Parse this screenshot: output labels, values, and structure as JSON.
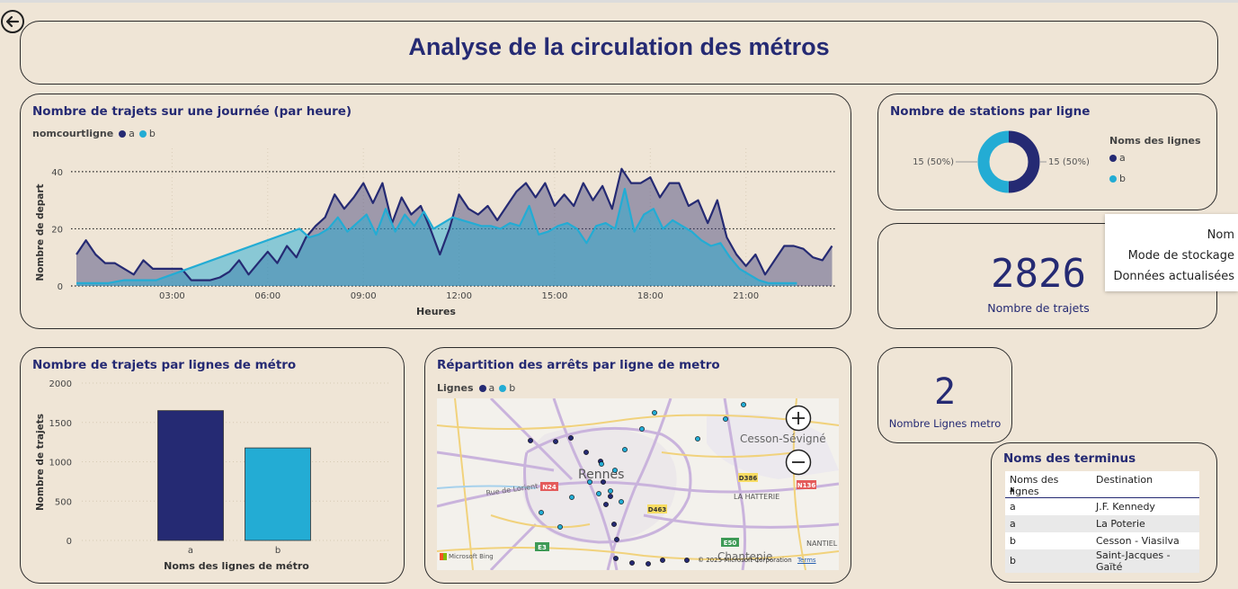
{
  "page": {
    "title": "Analyse de la circulation des métros"
  },
  "colors": {
    "line_a": "#252a73",
    "line_b": "#23acd4",
    "bg": "#efe5d6"
  },
  "back_icon": "back-arrow-icon",
  "trips_by_hour": {
    "title": "Nombre de trajets sur une journée (par heure)",
    "legend_title": "nomcourtligne",
    "legend_a": "a",
    "legend_b": "b",
    "xlabel": "Heures",
    "ylabel": "Nombre de depart",
    "y_ticks": [
      "0",
      "20",
      "40"
    ],
    "x_ticks": [
      "03:00",
      "06:00",
      "09:00",
      "12:00",
      "15:00",
      "18:00",
      "21:00"
    ]
  },
  "chart_data": [
    {
      "type": "area",
      "title": "Nombre de trajets sur une journée (par heure)",
      "xlabel": "Heures",
      "ylabel": "Nombre de depart",
      "ylim": [
        0,
        45
      ],
      "x_unit": "hours",
      "xlim": [
        0,
        23.8
      ],
      "x_ticks": [
        "03:00",
        "06:00",
        "09:00",
        "12:00",
        "15:00",
        "18:00",
        "21:00"
      ],
      "series": [
        {
          "name": "a",
          "x": [
            0,
            0.3,
            0.6,
            0.9,
            1.2,
            1.5,
            1.8,
            2.1,
            2.4,
            2.7,
            3.0,
            3.3,
            3.6,
            3.9,
            4.2,
            4.5,
            4.8,
            5.1,
            5.4,
            5.7,
            6.0,
            6.3,
            6.6,
            6.9,
            7.2,
            7.5,
            7.8,
            8.1,
            8.4,
            8.7,
            9.0,
            9.3,
            9.6,
            9.9,
            10.2,
            10.5,
            10.8,
            11.1,
            11.4,
            11.7,
            12.0,
            12.3,
            12.6,
            12.9,
            13.2,
            13.5,
            13.8,
            14.1,
            14.4,
            14.7,
            15.0,
            15.3,
            15.6,
            15.9,
            16.2,
            16.5,
            16.8,
            17.1,
            17.4,
            17.7,
            18.0,
            18.3,
            18.6,
            18.9,
            19.2,
            19.5,
            19.8,
            20.1,
            20.4,
            20.7,
            21.0,
            21.3,
            21.6,
            21.9,
            22.2,
            22.5,
            22.8,
            23.1,
            23.4,
            23.7
          ],
          "values": [
            11,
            16,
            11,
            8,
            8,
            6,
            4,
            9,
            6,
            6,
            6,
            6,
            2,
            2,
            2,
            3,
            5,
            9,
            4,
            8,
            12,
            8,
            14,
            10,
            17,
            21,
            24,
            32,
            27,
            31,
            36,
            29,
            36,
            22,
            31,
            25,
            28,
            20,
            11,
            20,
            32,
            27,
            25,
            28,
            23,
            28,
            33,
            36,
            31,
            36,
            28,
            32,
            28,
            36,
            30,
            35,
            27,
            41,
            36,
            36,
            38,
            31,
            36,
            36,
            28,
            30,
            22,
            30,
            17,
            11,
            7,
            11,
            4,
            9,
            14,
            14,
            13,
            10,
            9,
            14
          ]
        },
        {
          "name": "b",
          "x": [
            0,
            0.5,
            1.0,
            1.5,
            2.0,
            2.5,
            3.0,
            7.0,
            7.3,
            7.6,
            7.9,
            8.2,
            8.5,
            8.8,
            9.1,
            9.4,
            9.7,
            10.0,
            10.3,
            10.6,
            10.9,
            11.2,
            11.5,
            11.8,
            12.1,
            12.4,
            12.7,
            13.0,
            13.3,
            13.6,
            13.9,
            14.2,
            14.5,
            14.8,
            15.1,
            15.4,
            15.7,
            16.0,
            16.3,
            16.6,
            16.9,
            17.2,
            17.5,
            17.8,
            18.1,
            18.4,
            18.7,
            19.0,
            19.3,
            19.6,
            19.9,
            20.2,
            20.5,
            20.8,
            21.1,
            21.4,
            21.7,
            22.0,
            22.3,
            22.6
          ],
          "values": [
            1,
            1,
            1,
            2,
            2,
            2,
            4,
            20,
            17,
            18,
            20,
            24,
            19,
            22,
            25,
            18,
            27,
            19,
            25,
            21,
            26,
            20,
            22,
            24,
            23,
            22,
            21,
            21,
            20,
            22,
            21,
            28,
            18,
            19,
            21,
            22,
            20,
            15,
            21,
            22,
            20,
            34,
            19,
            25,
            27,
            20,
            23,
            21,
            19,
            16,
            14,
            15,
            10,
            6,
            4,
            2,
            1,
            1,
            1,
            1
          ]
        }
      ]
    },
    {
      "type": "pie",
      "title": "Nombre de stations par ligne",
      "legend_title": "Noms des lignes",
      "categories": [
        "a",
        "b"
      ],
      "values": [
        15,
        15
      ],
      "labels": [
        "15 (50%)",
        "15 (50%)"
      ]
    },
    {
      "type": "bar",
      "title": "Nombre de trajets par lignes de métro",
      "xlabel": "Noms des lignes de métro",
      "ylabel": "Nombre de trajets",
      "categories": [
        "a",
        "b"
      ],
      "values": [
        1650,
        1176
      ],
      "ylim": [
        0,
        2000
      ],
      "y_ticks": [
        "0",
        "500",
        "1000",
        "1500",
        "2000"
      ]
    }
  ],
  "stations": {
    "title": "Nombre de stations par ligne",
    "legend_title": "Noms des lignes",
    "legend_a": "a",
    "legend_b": "b",
    "label_left": "15 (50%)",
    "label_right": "15 (50%)"
  },
  "kpi_trips": {
    "value": "2826",
    "label": "Nombre de trajets"
  },
  "kpi_lines": {
    "value": "2",
    "label": "Nombre Lignes metro"
  },
  "tooltip": {
    "items": [
      "Nom",
      "Mode de stockage",
      "Données actualisées"
    ]
  },
  "bar_chart": {
    "title": "Nombre de trajets par lignes de métro",
    "xlabel": "Noms des lignes de métro",
    "ylabel": "Nombre de trajets",
    "y_ticks": [
      "0",
      "500",
      "1000",
      "1500",
      "2000"
    ],
    "x_labels": [
      "a",
      "b"
    ]
  },
  "map_card": {
    "title": "Répartition des arrêts par ligne de metro",
    "legend_title": "Lignes",
    "legend_a": "a",
    "legend_b": "b",
    "places": {
      "rennes": "Rennes",
      "cesson": "Cesson-Sévigné",
      "hatterie": "LA HATTERIE",
      "chantepie": "Chantepie",
      "nantiel": "NANTIEL",
      "rue_lorient": "Rue de Lorient"
    },
    "roads": {
      "n24": "N24",
      "d386": "D386",
      "n136": "N136",
      "d463": "D463",
      "e50": "E50",
      "e3": "E3"
    },
    "credit_bing": "Microsoft Bing",
    "copyright": "© 2025 Microsoft Corporation",
    "terms": "Terms",
    "zoom_in_icon": "zoom-in-icon",
    "zoom_out_icon": "zoom-out-icon"
  },
  "terminus": {
    "title": "Noms des terminus",
    "col_line": "Noms des lignes",
    "col_dest": "Destination",
    "rows": [
      {
        "line": "a",
        "dest": "J.F. Kennedy"
      },
      {
        "line": "a",
        "dest": "La Poterie"
      },
      {
        "line": "b",
        "dest": "Cesson - Viasilva"
      },
      {
        "line": "b",
        "dest": "Saint-Jacques - Gaïté"
      }
    ]
  }
}
